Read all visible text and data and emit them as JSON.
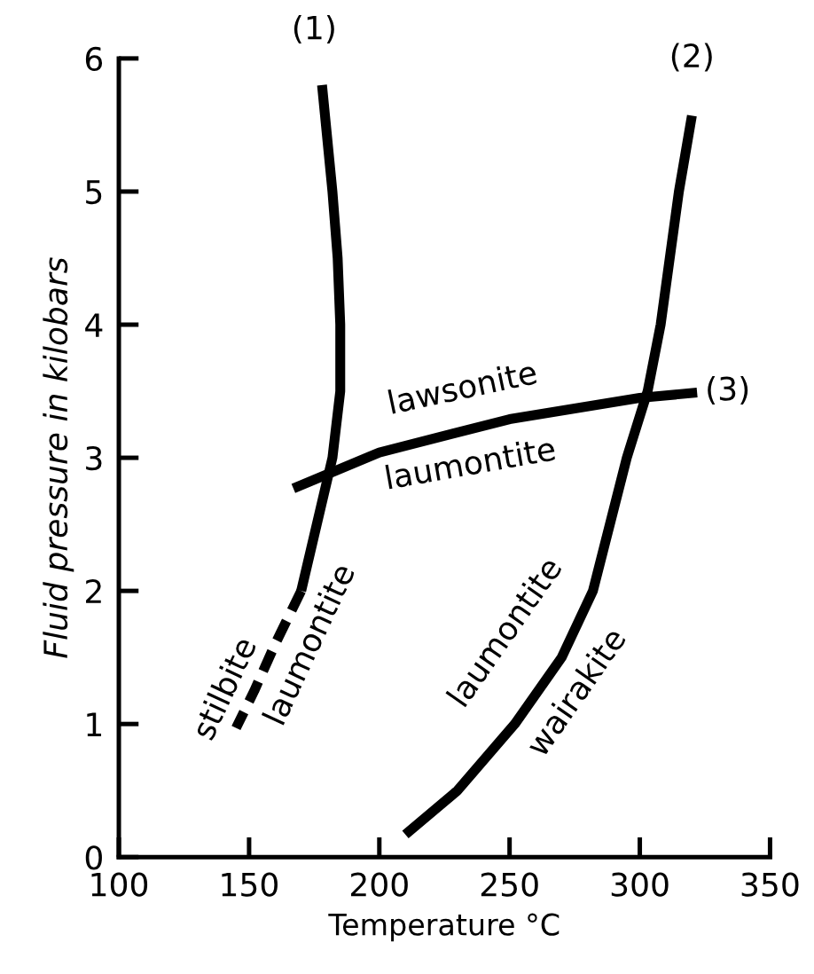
{
  "chart_data": {
    "type": "line",
    "xlabel": "Temperature °C",
    "ylabel": "Fluid pressure in kilobars",
    "xlim": [
      100,
      350
    ],
    "ylim": [
      0,
      6
    ],
    "xticks": [
      100,
      150,
      200,
      250,
      300,
      350
    ],
    "yticks": [
      0,
      1,
      2,
      3,
      4,
      5,
      6
    ],
    "grid": false,
    "legend": false,
    "marker": "none",
    "series": [
      {
        "color": "#000000",
        "line_style": "solid",
        "x": [
          178,
          180,
          182,
          184,
          185,
          185,
          182,
          176,
          170
        ],
        "values": [
          5.8,
          5.4,
          5.0,
          4.5,
          4.0,
          3.5,
          3.0,
          2.5,
          2.0
        ]
      },
      {
        "color": "#000000",
        "line_style": "dashed",
        "x": [
          170,
          160,
          152,
          145
        ],
        "values": [
          2.0,
          1.6,
          1.25,
          0.97
        ]
      },
      {
        "color": "#000000",
        "line_style": "solid",
        "x": [
          210,
          230,
          252,
          270,
          282,
          295,
          303,
          308,
          315,
          320
        ],
        "values": [
          0.17,
          0.5,
          1.0,
          1.5,
          2.0,
          3.0,
          3.5,
          4.0,
          5.0,
          5.57
        ]
      },
      {
        "color": "#000000",
        "line_style": "solid",
        "x": [
          167,
          200,
          250,
          300,
          322
        ],
        "values": [
          2.77,
          3.04,
          3.29,
          3.45,
          3.49
        ]
      }
    ],
    "annotations": [
      "(1)",
      "(2)",
      "(3)",
      "lawsonite",
      "laumontite",
      "stilbite",
      "laumontite",
      "laumontite",
      "wairakite"
    ]
  }
}
